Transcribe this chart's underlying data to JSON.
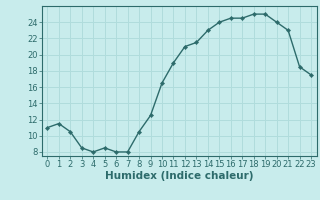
{
  "x": [
    0,
    1,
    2,
    3,
    4,
    5,
    6,
    7,
    8,
    9,
    10,
    11,
    12,
    13,
    14,
    15,
    16,
    17,
    18,
    19,
    20,
    21,
    22,
    23
  ],
  "y": [
    11,
    11.5,
    10.5,
    8.5,
    8,
    8.5,
    8,
    8,
    10.5,
    12.5,
    16.5,
    19,
    21,
    21.5,
    23,
    24,
    24.5,
    24.5,
    25,
    25,
    24,
    23,
    18.5,
    17.5
  ],
  "xlabel": "Humidex (Indice chaleur)",
  "xlim": [
    -0.5,
    23.5
  ],
  "ylim": [
    7.5,
    26
  ],
  "yticks": [
    8,
    10,
    12,
    14,
    16,
    18,
    20,
    22,
    24
  ],
  "xticks": [
    0,
    1,
    2,
    3,
    4,
    5,
    6,
    7,
    8,
    9,
    10,
    11,
    12,
    13,
    14,
    15,
    16,
    17,
    18,
    19,
    20,
    21,
    22,
    23
  ],
  "line_color": "#2d6b6b",
  "bg_color": "#c8ecec",
  "grid_color": "#b0dcdc",
  "label_fontsize": 7.5,
  "tick_fontsize": 6.0
}
